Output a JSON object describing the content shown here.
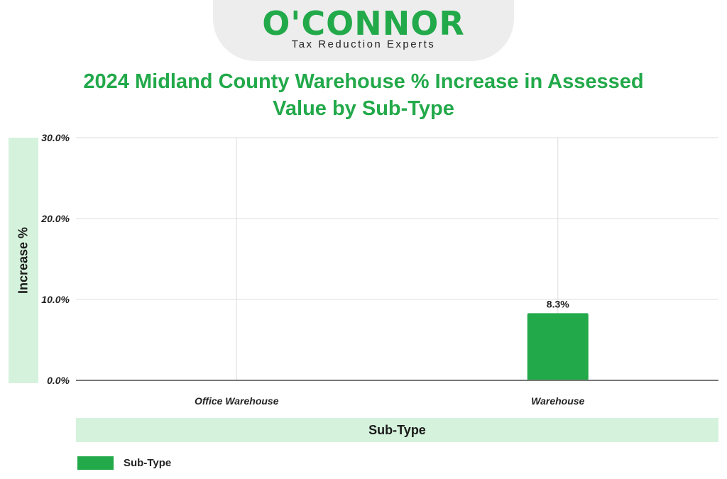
{
  "logo": {
    "brand": "O'CONNOR",
    "tagline": "Tax Reduction Experts"
  },
  "colors": {
    "accent": "#22a94a",
    "band": "#d5f2dc",
    "grid": "#dddddd",
    "axis": "#777777"
  },
  "chart_data": {
    "type": "bar",
    "title": "2024 Midland County Warehouse % Increase in Assessed Value by Sub-Type",
    "xlabel": "Sub-Type",
    "ylabel": "Increase %",
    "categories": [
      "Office Warehouse",
      "Warehouse"
    ],
    "series": [
      {
        "name": "Sub-Type",
        "values": [
          0,
          8.3
        ],
        "data_labels": [
          "",
          "8.3%"
        ]
      }
    ],
    "ylim": [
      0,
      30
    ],
    "yticks": [
      0,
      10,
      20,
      30
    ],
    "ytick_labels": [
      "0.0%",
      "10.0%",
      "20.0%",
      "30.0%"
    ],
    "grid": true,
    "legend": "bottom-left"
  }
}
